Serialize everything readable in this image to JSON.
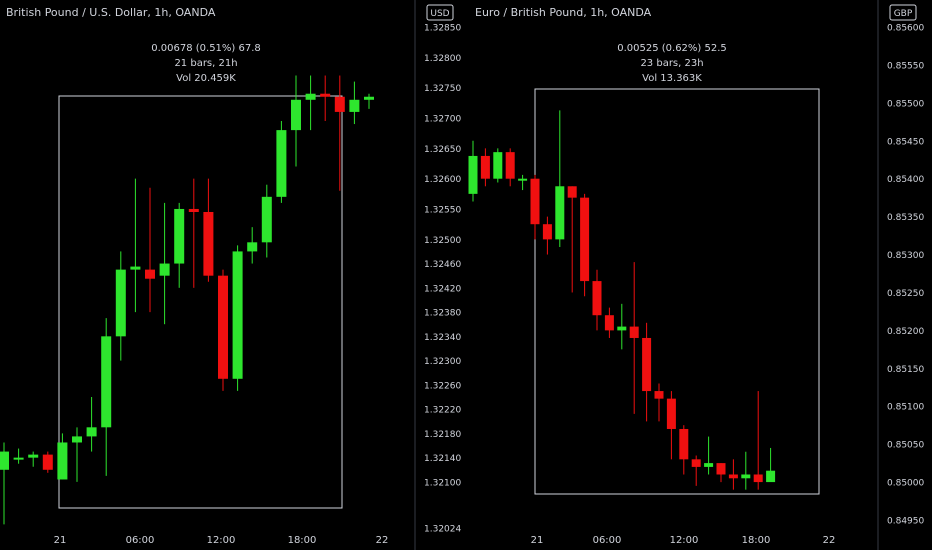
{
  "colors": {
    "up": "#2ee62e",
    "down": "#f01010",
    "axis_text": "#d1d4dc",
    "axis_line": "#363a45",
    "box": "#d1d4dc",
    "background": "#000000"
  },
  "chart_data": [
    {
      "type": "candlestick",
      "title": "British Pound / U.S. Dollar, 1h, OANDA",
      "currency": "USD",
      "y_ticks": [
        "1.32850",
        "1.32800",
        "1.32750",
        "1.32700",
        "1.32650",
        "1.32600",
        "1.32550",
        "1.32500",
        "1.32460",
        "1.32420",
        "1.32380",
        "1.32340",
        "1.32300",
        "1.32260",
        "1.32220",
        "1.32180",
        "1.32140",
        "1.32100",
        "1.32024"
      ],
      "x_ticks": [
        "21",
        "06:00",
        "12:00",
        "18:00",
        "22"
      ],
      "measure": {
        "line1": "0.00678 (0.51%) 67.8",
        "line2": "21 bars, 21h",
        "line3": "Vol 20.459K",
        "start_bar": 4,
        "end_bar": 25,
        "price_low": 1.32104,
        "price_high": 1.32782
      },
      "candles": [
        [
          1.3212,
          1.3215,
          1.3203,
          1.32165
        ],
        [
          1.3214,
          1.3214,
          1.3213,
          1.32155
        ],
        [
          1.3214,
          1.32145,
          1.32125,
          1.3215
        ],
        [
          1.32145,
          1.3212,
          1.32115,
          1.3215
        ],
        [
          1.32104,
          1.32165,
          1.32104,
          1.3218
        ],
        [
          1.32165,
          1.32175,
          1.321,
          1.3219
        ],
        [
          1.32175,
          1.3219,
          1.3215,
          1.3224
        ],
        [
          1.3219,
          1.3234,
          1.3211,
          1.3237
        ],
        [
          1.3234,
          1.3245,
          1.323,
          1.3248
        ],
        [
          1.3245,
          1.32455,
          1.3238,
          1.326
        ],
        [
          1.3245,
          1.32435,
          1.3238,
          1.32585
        ],
        [
          1.3244,
          1.3246,
          1.3236,
          1.3256
        ],
        [
          1.3246,
          1.3255,
          1.3242,
          1.3256
        ],
        [
          1.3255,
          1.32545,
          1.3242,
          1.326
        ],
        [
          1.32545,
          1.3244,
          1.3243,
          1.326
        ],
        [
          1.3244,
          1.3227,
          1.3225,
          1.3245
        ],
        [
          1.3227,
          1.3248,
          1.3225,
          1.3249
        ],
        [
          1.3248,
          1.32495,
          1.3246,
          1.3252
        ],
        [
          1.32495,
          1.3257,
          1.3247,
          1.3259
        ],
        [
          1.3257,
          1.3268,
          1.3256,
          1.32695
        ],
        [
          1.3268,
          1.3273,
          1.3262,
          1.3277
        ],
        [
          1.3273,
          1.3274,
          1.3268,
          1.3277
        ],
        [
          1.3274,
          1.32735,
          1.32695,
          1.3277
        ],
        [
          1.32735,
          1.3271,
          1.3258,
          1.3277
        ],
        [
          1.3271,
          1.3273,
          1.3269,
          1.3276
        ],
        [
          1.3273,
          1.32735,
          1.32715,
          1.3274
        ]
      ]
    },
    {
      "type": "candlestick",
      "title": "Euro / British Pound, 1h, OANDA",
      "currency": "GBP",
      "y_ticks": [
        "0.85600",
        "0.85550",
        "0.85500",
        "0.85450",
        "0.85400",
        "0.85350",
        "0.85300",
        "0.85250",
        "0.85200",
        "0.85150",
        "0.85100",
        "0.85050",
        "0.85000",
        "0.84950"
      ],
      "x_ticks": [
        "21",
        "06:00",
        "12:00",
        "18:00",
        "22"
      ],
      "measure": {
        "line1": "0.00525 (0.62%) 52.5",
        "line2": "23 bars, 23h",
        "line3": "Vol 13.363K",
        "start_bar": 4,
        "end_bar": 27,
        "price_low": 0.84985,
        "price_high": 0.8551
      },
      "candles": [
        [
          0.8538,
          0.8543,
          0.8537,
          0.8545
        ],
        [
          0.8543,
          0.854,
          0.8539,
          0.8544
        ],
        [
          0.854,
          0.85435,
          0.85395,
          0.8544
        ],
        [
          0.85435,
          0.854,
          0.8539,
          0.8544
        ],
        [
          0.854,
          0.854,
          0.85385,
          0.85405
        ],
        [
          0.854,
          0.8534,
          0.8532,
          0.85405
        ],
        [
          0.8534,
          0.8532,
          0.853,
          0.8535
        ],
        [
          0.8532,
          0.8539,
          0.8531,
          0.8549
        ],
        [
          0.8539,
          0.85375,
          0.8525,
          0.8539
        ],
        [
          0.85375,
          0.85265,
          0.85245,
          0.8538
        ],
        [
          0.85265,
          0.8522,
          0.852,
          0.8528
        ],
        [
          0.8522,
          0.852,
          0.8519,
          0.8523
        ],
        [
          0.852,
          0.85205,
          0.85175,
          0.85235
        ],
        [
          0.85205,
          0.8519,
          0.8509,
          0.8529
        ],
        [
          0.8519,
          0.8512,
          0.8508,
          0.8521
        ],
        [
          0.8512,
          0.8511,
          0.8508,
          0.8513
        ],
        [
          0.8511,
          0.8507,
          0.8503,
          0.8512
        ],
        [
          0.8507,
          0.8503,
          0.8501,
          0.85075
        ],
        [
          0.8503,
          0.8502,
          0.84995,
          0.85035
        ],
        [
          0.8502,
          0.85025,
          0.8501,
          0.8506
        ],
        [
          0.85025,
          0.8501,
          0.85,
          0.85025
        ],
        [
          0.8501,
          0.85005,
          0.8499,
          0.8503
        ],
        [
          0.85005,
          0.8501,
          0.8499,
          0.8504
        ],
        [
          0.8501,
          0.85,
          0.8499,
          0.8512
        ],
        [
          0.85,
          0.85015,
          0.85005,
          0.85045
        ]
      ]
    }
  ]
}
